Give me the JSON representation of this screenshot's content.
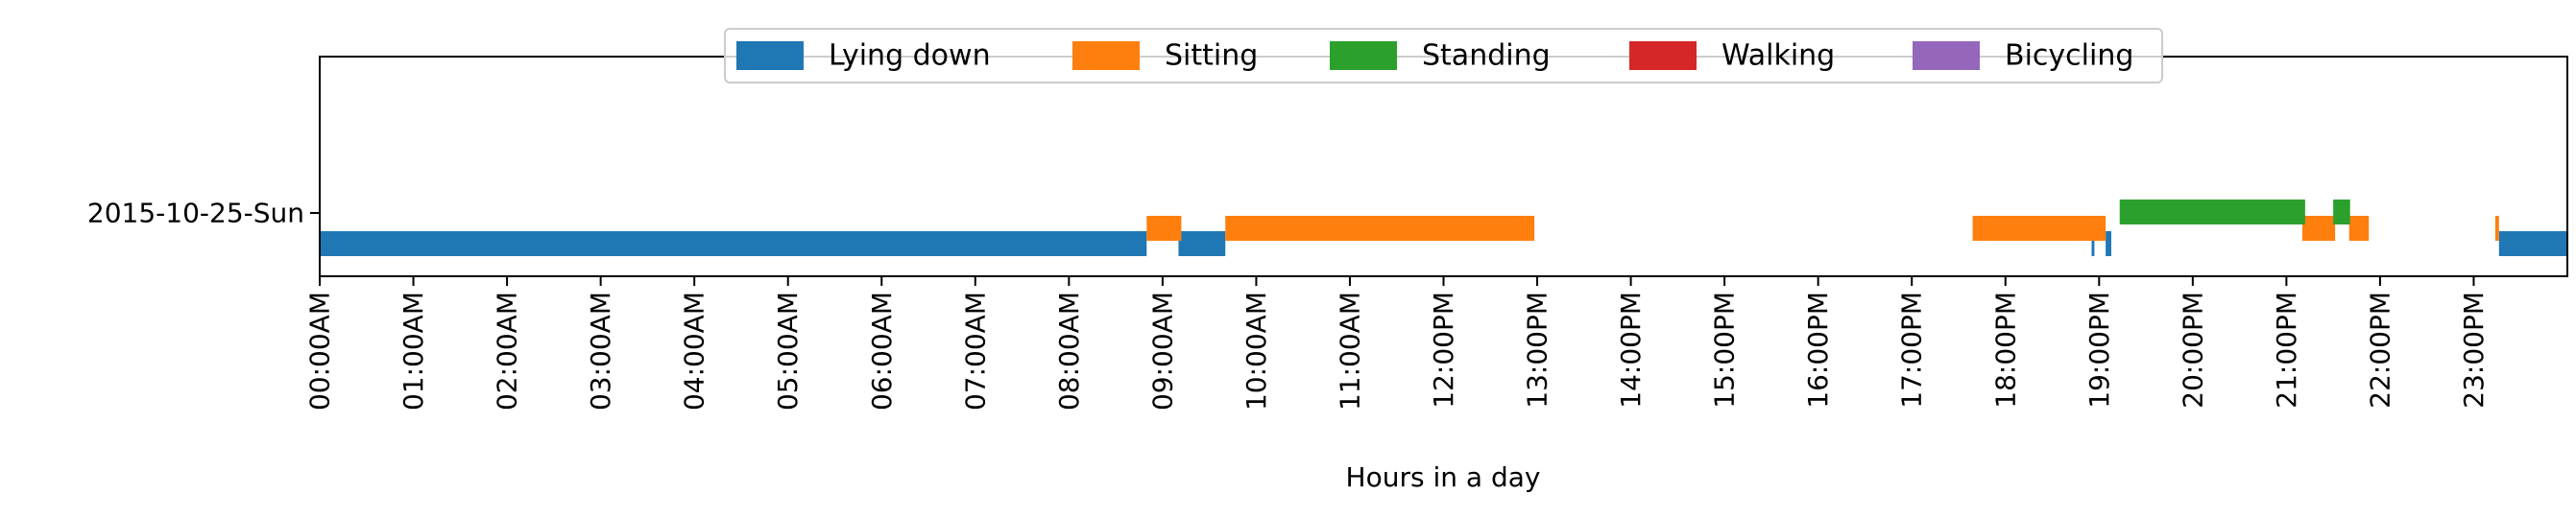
{
  "chart_data": {
    "type": "timeline",
    "xlabel": "Hours in a day",
    "xlim": [
      0,
      24
    ],
    "x_ticks": [
      {
        "value": 0,
        "label": "00:00AM"
      },
      {
        "value": 1,
        "label": "01:00AM"
      },
      {
        "value": 2,
        "label": "02:00AM"
      },
      {
        "value": 3,
        "label": "03:00AM"
      },
      {
        "value": 4,
        "label": "04:00AM"
      },
      {
        "value": 5,
        "label": "05:00AM"
      },
      {
        "value": 6,
        "label": "06:00AM"
      },
      {
        "value": 7,
        "label": "07:00AM"
      },
      {
        "value": 8,
        "label": "08:00AM"
      },
      {
        "value": 9,
        "label": "09:00AM"
      },
      {
        "value": 10,
        "label": "10:00AM"
      },
      {
        "value": 11,
        "label": "11:00AM"
      },
      {
        "value": 12,
        "label": "12:00PM"
      },
      {
        "value": 13,
        "label": "13:00PM"
      },
      {
        "value": 14,
        "label": "14:00PM"
      },
      {
        "value": 15,
        "label": "15:00PM"
      },
      {
        "value": 16,
        "label": "16:00PM"
      },
      {
        "value": 17,
        "label": "17:00PM"
      },
      {
        "value": 18,
        "label": "18:00PM"
      },
      {
        "value": 19,
        "label": "19:00PM"
      },
      {
        "value": 20,
        "label": "20:00PM"
      },
      {
        "value": 21,
        "label": "21:00PM"
      },
      {
        "value": 22,
        "label": "22:00PM"
      },
      {
        "value": 23,
        "label": "23:00PM"
      }
    ],
    "y_categories": [
      "2015-10-25-Sun"
    ],
    "legend_position": "top-center",
    "series": [
      {
        "name": "Lying down",
        "color": "#1f77b4",
        "lane": 0,
        "intervals": [
          [
            0.0,
            8.83
          ],
          [
            9.17,
            9.67
          ],
          [
            18.92,
            18.95
          ],
          [
            19.07,
            19.13
          ],
          [
            23.27,
            24.0
          ]
        ]
      },
      {
        "name": "Sitting",
        "color": "#ff7f0e",
        "lane": 1,
        "intervals": [
          [
            8.83,
            9.2
          ],
          [
            9.67,
            12.97
          ],
          [
            17.65,
            19.07
          ],
          [
            21.17,
            21.52
          ],
          [
            21.67,
            21.88
          ],
          [
            23.23,
            23.27
          ]
        ]
      },
      {
        "name": "Standing",
        "color": "#2ca02c",
        "lane": 2,
        "intervals": [
          [
            19.22,
            21.2
          ],
          [
            21.5,
            21.68
          ]
        ]
      },
      {
        "name": "Walking",
        "color": "#d62728",
        "lane": 3,
        "intervals": []
      },
      {
        "name": "Bicycling",
        "color": "#9467bd",
        "lane": 4,
        "intervals": []
      }
    ]
  }
}
